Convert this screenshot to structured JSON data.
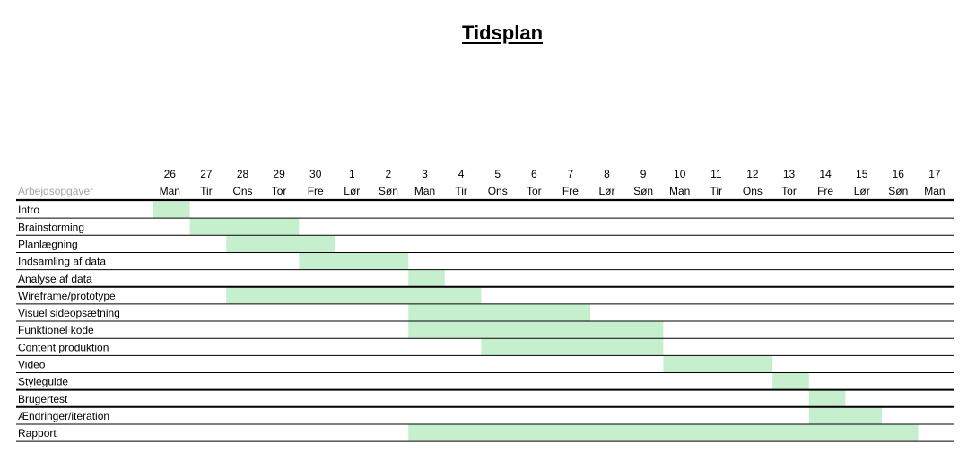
{
  "title": "Tidsplan",
  "chart_data": {
    "type": "gantt",
    "title": "Tidsplan",
    "task_column_header": "Arbejdsopgaver",
    "days": [
      {
        "num": "26",
        "wd": "Man"
      },
      {
        "num": "27",
        "wd": "Tir"
      },
      {
        "num": "28",
        "wd": "Ons"
      },
      {
        "num": "29",
        "wd": "Tor"
      },
      {
        "num": "30",
        "wd": "Fre"
      },
      {
        "num": "1",
        "wd": "Lør"
      },
      {
        "num": "2",
        "wd": "Søn"
      },
      {
        "num": "3",
        "wd": "Man"
      },
      {
        "num": "4",
        "wd": "Tir"
      },
      {
        "num": "5",
        "wd": "Ons"
      },
      {
        "num": "6",
        "wd": "Tor"
      },
      {
        "num": "7",
        "wd": "Fre"
      },
      {
        "num": "8",
        "wd": "Lør"
      },
      {
        "num": "9",
        "wd": "Søn"
      },
      {
        "num": "10",
        "wd": "Man"
      },
      {
        "num": "11",
        "wd": "Tir"
      },
      {
        "num": "12",
        "wd": "Ons"
      },
      {
        "num": "13",
        "wd": "Tor"
      },
      {
        "num": "14",
        "wd": "Fre"
      },
      {
        "num": "15",
        "wd": "Lør"
      },
      {
        "num": "16",
        "wd": "Søn"
      },
      {
        "num": "17",
        "wd": "Man"
      }
    ],
    "tasks": [
      {
        "name": "Intro",
        "start": 0,
        "end": 0
      },
      {
        "name": "Brainstorming",
        "start": 1,
        "end": 3
      },
      {
        "name": "Planlægning",
        "start": 2,
        "end": 4
      },
      {
        "name": "Indsamling af data",
        "start": 4,
        "end": 6
      },
      {
        "name": "Analyse af data",
        "start": 7,
        "end": 7
      },
      {
        "name": "Wireframe/prototype",
        "start": 2,
        "end": 8
      },
      {
        "name": "Visuel sideopsætning",
        "start": 7,
        "end": 11
      },
      {
        "name": "Funktionel kode",
        "start": 7,
        "end": 13
      },
      {
        "name": "Content produktion",
        "start": 9,
        "end": 13
      },
      {
        "name": "Video",
        "start": 14,
        "end": 16
      },
      {
        "name": "Styleguide",
        "start": 17,
        "end": 17
      },
      {
        "name": "Brugertest",
        "start": 18,
        "end": 18
      },
      {
        "name": "Ændringer/iteration",
        "start": 18,
        "end": 19
      },
      {
        "name": "Rapport",
        "start": 7,
        "end": 20
      }
    ],
    "thick_separators_before": [
      5,
      11,
      12
    ],
    "bar_color": "#c6efce",
    "header_label_color": "#a6a6a6"
  }
}
